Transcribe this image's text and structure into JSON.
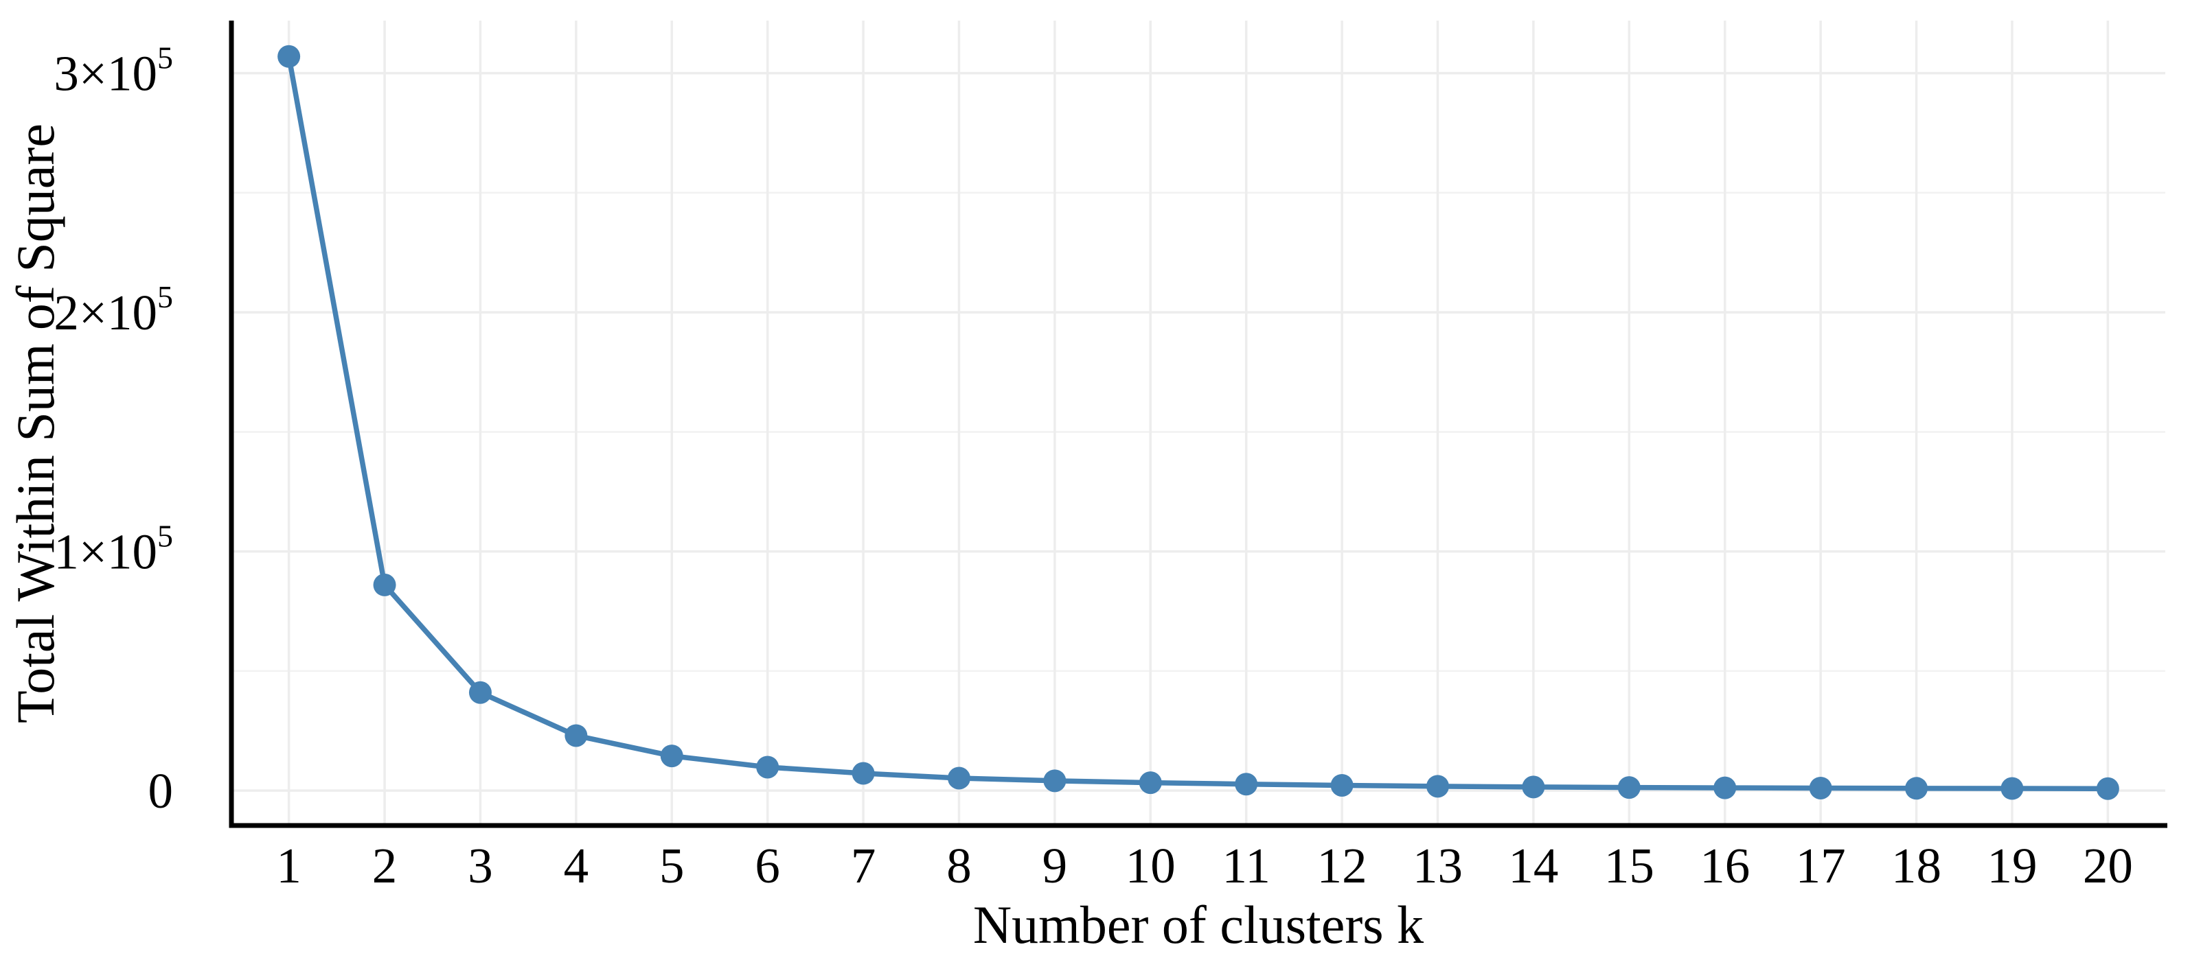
{
  "chart_data": {
    "type": "line",
    "title": "",
    "xlabel": "Number of clusters k",
    "ylabel": "Total Within Sum of Square",
    "x": [
      1,
      2,
      3,
      4,
      5,
      6,
      7,
      8,
      9,
      10,
      11,
      12,
      13,
      14,
      15,
      16,
      17,
      18,
      19,
      20
    ],
    "x_tick_labels": [
      "1",
      "2",
      "3",
      "4",
      "5",
      "6",
      "7",
      "8",
      "9",
      "10",
      "11",
      "12",
      "13",
      "14",
      "15",
      "16",
      "17",
      "18",
      "19",
      "20"
    ],
    "values": [
      307000,
      86000,
      41000,
      23000,
      14500,
      9800,
      7200,
      5200,
      4100,
      3300,
      2700,
      2200,
      1800,
      1500,
      1300,
      1150,
      1050,
      950,
      880,
      820
    ],
    "y_ticks": [
      {
        "value": 0,
        "label": "0",
        "sup": ""
      },
      {
        "value": 100000,
        "label": "1×10",
        "sup": "5"
      },
      {
        "value": 200000,
        "label": "2×10",
        "sup": "5"
      },
      {
        "value": 300000,
        "label": "3×10",
        "sup": "5"
      }
    ],
    "y_minor_ticks": [
      50000,
      150000,
      250000
    ],
    "ylim": [
      -14600,
      322000
    ],
    "x_padding_units": 0.6,
    "grid": {
      "horizontal": "major+minor",
      "vertical": "major-only",
      "visible": true
    },
    "legend_position": "none",
    "colors": {
      "line": "#4682B4",
      "point": "#4682B4",
      "grid_major": "#EDEDED",
      "grid_minor": "#F2F2F2",
      "axis_line": "#000000",
      "text": "#000000",
      "background": "#FFFFFF"
    }
  }
}
